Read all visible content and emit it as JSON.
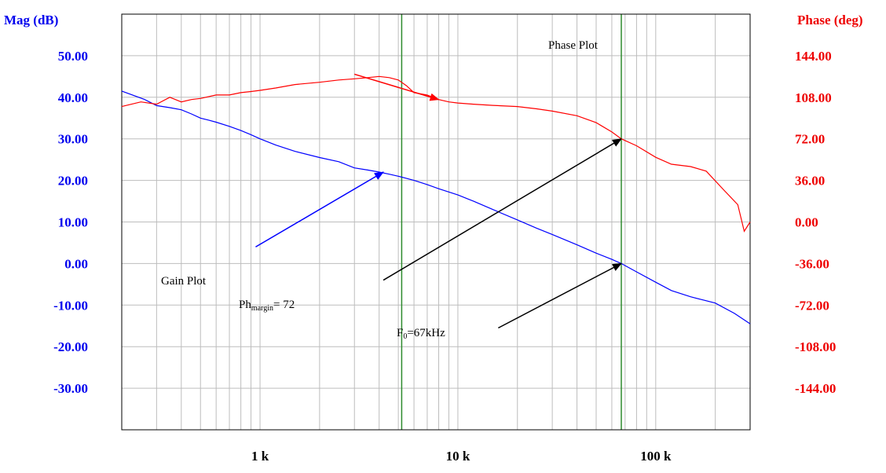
{
  "chart_data": {
    "type": "line",
    "title": "",
    "x_scale": "log",
    "xlim": [
      200,
      300000
    ],
    "x_ticks": [
      {
        "value": 1000,
        "label": "1 k"
      },
      {
        "value": 10000,
        "label": "10 k"
      },
      {
        "value": 100000,
        "label": "100 k"
      }
    ],
    "y_left": {
      "label": "Mag (dB)",
      "ylim": [
        -40,
        60
      ],
      "ticks": [
        "50.00",
        "40.00",
        "30.00",
        "20.00",
        "10.00",
        "0.00",
        "-10.00",
        "-20.00",
        "-30.00"
      ],
      "tick_values": [
        50,
        40,
        30,
        20,
        10,
        0,
        -10,
        -20,
        -30
      ],
      "color": "#0000ee"
    },
    "y_right": {
      "label": "Phase (deg)",
      "ylim": [
        -180,
        180
      ],
      "ticks": [
        "144.00",
        "108.00",
        "72.00",
        "36.00",
        "0.00",
        "-36.00",
        "-72.00",
        "-108.00",
        "-144.00"
      ],
      "tick_values": [
        144,
        108,
        72,
        36,
        0,
        -36,
        -72,
        -108,
        -144
      ],
      "color": "#ee0000"
    },
    "grid": true,
    "vertical_markers": [
      5200,
      67000
    ],
    "marker_color": "#2e8b2e",
    "series": [
      {
        "axis": "left",
        "color": "#0000ff",
        "x": [
          200,
          260,
          300,
          350,
          400,
          450,
          500,
          550,
          600,
          700,
          800,
          900,
          1000,
          1200,
          1500,
          2000,
          2500,
          3000,
          3500,
          4000,
          4500,
          5000,
          6000,
          7000,
          8000,
          10000,
          12000,
          15000,
          20000,
          25000,
          30000,
          40000,
          50000,
          60000,
          67000,
          80000,
          100000,
          120000,
          150000,
          200000,
          250000,
          300000
        ],
        "y": [
          41.5,
          39.5,
          38,
          37.5,
          37,
          36,
          35,
          34.5,
          34,
          33,
          32,
          31,
          30,
          28.5,
          27,
          25.5,
          24.5,
          23,
          22.5,
          22,
          21.5,
          21,
          20,
          19,
          18,
          16.5,
          15,
          13,
          10.5,
          8.5,
          7,
          4.5,
          2.5,
          1,
          0,
          -2,
          -4.5,
          -6.5,
          -8,
          -9.5,
          -12,
          -14.5
        ]
      },
      {
        "axis": "right",
        "color": "#ff0000",
        "x": [
          200,
          250,
          300,
          350,
          400,
          450,
          500,
          600,
          700,
          800,
          900,
          1000,
          1200,
          1500,
          2000,
          2500,
          3000,
          3500,
          4000,
          4500,
          5000,
          5500,
          6000,
          7000,
          8000,
          9000,
          10000,
          12000,
          15000,
          20000,
          25000,
          30000,
          40000,
          50000,
          60000,
          67000,
          80000,
          100000,
          120000,
          150000,
          180000,
          220000,
          260000,
          280000,
          300000
        ],
        "y": [
          100,
          104,
          102,
          108,
          104,
          106,
          107,
          110,
          110,
          112,
          113,
          114,
          116,
          119,
          121,
          123,
          124,
          125,
          126,
          125,
          123,
          118,
          112,
          110,
          106,
          104,
          103,
          102,
          101,
          100,
          98,
          96,
          92,
          86,
          78,
          72,
          66,
          56,
          50,
          48,
          44,
          28,
          15,
          -8,
          0
        ]
      }
    ],
    "annotations": [
      {
        "text": "Phase Plot",
        "sub": "",
        "tail_x": 3000,
        "tail_y": 128,
        "head_x": 8000,
        "head_y": 106,
        "axis": "right",
        "color": "#ff0000"
      },
      {
        "text": "Gain Plot",
        "sub": "",
        "tail_x": 950,
        "tail_y": 4,
        "head_x": 4200,
        "head_y": 22,
        "axis": "left",
        "color": "#0000ff"
      },
      {
        "text": "Ph",
        "sub": "margin",
        "suffix": "= 72",
        "tail_x": 4200,
        "tail_y": -4,
        "head_x": 67000,
        "head_y": 72,
        "axis": "left_for_tail",
        "color": "#000000"
      },
      {
        "text": "F",
        "sub": "0",
        "suffix": "=67kHz",
        "tail_x": 16000,
        "tail_y": -15.5,
        "head_x": 67000,
        "head_y": 0,
        "axis": "left",
        "color": "#000000"
      }
    ]
  }
}
